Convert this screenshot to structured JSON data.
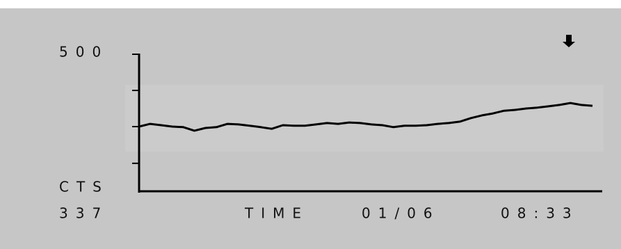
{
  "chart_data": {
    "type": "line",
    "ylim": [
      0,
      500
    ],
    "yticks": [
      {
        "value": 500,
        "label": "500"
      }
    ],
    "minor_yticks": [
      368,
      236,
      102
    ],
    "y_label": "CTS",
    "reading": "337",
    "x_label": "TIME",
    "date": "01/06",
    "time": "08:33",
    "color": "#000000",
    "values": [
      236,
      246,
      241,
      236,
      234,
      221,
      231,
      234,
      246,
      244,
      239,
      234,
      228,
      241,
      239,
      239,
      244,
      249,
      246,
      251,
      249,
      244,
      241,
      234,
      239,
      239,
      241,
      246,
      249,
      254,
      267,
      277,
      284,
      294,
      297,
      302,
      305,
      310,
      315,
      322,
      315,
      312
    ]
  }
}
